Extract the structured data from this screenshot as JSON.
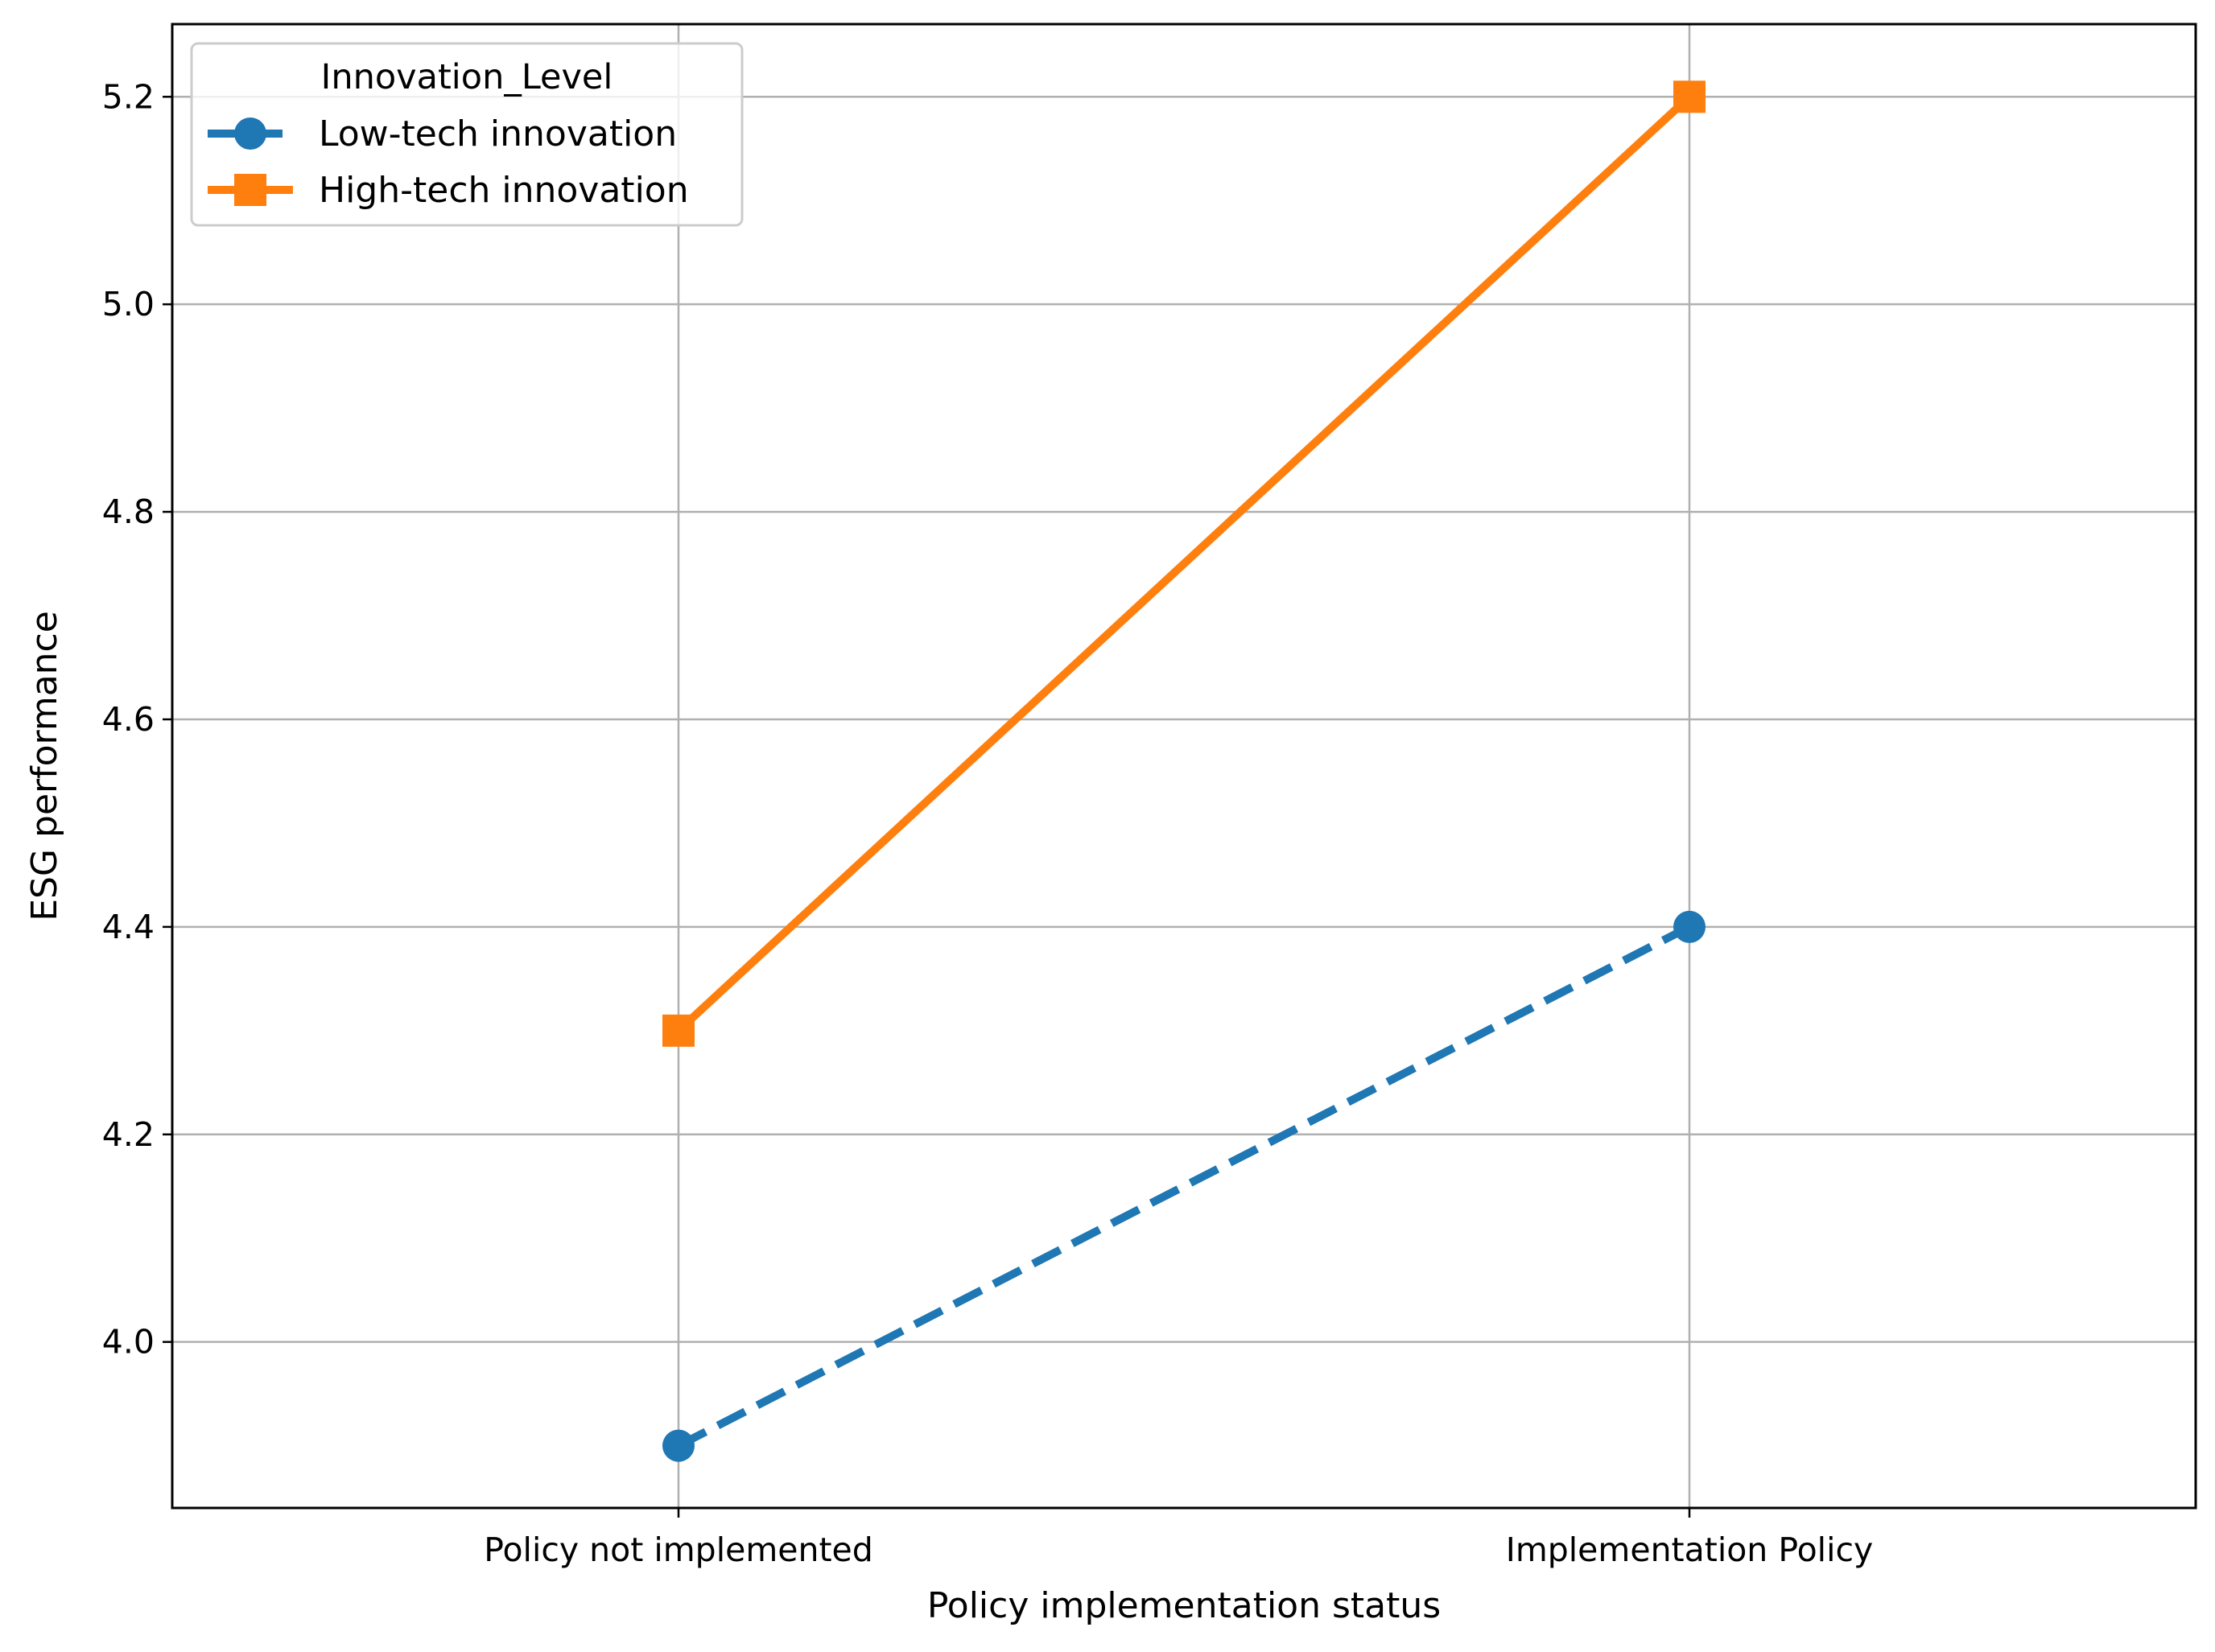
{
  "chart_data": {
    "type": "line",
    "title": "",
    "xlabel": "Policy implementation status",
    "ylabel": "ESG performance",
    "categories": [
      "Policy not implemented",
      "Implementation Policy"
    ],
    "y_ticks": [
      "4.0",
      "4.2",
      "4.4",
      "4.6",
      "4.8",
      "5.0",
      "5.2"
    ],
    "ylim": [
      3.84,
      5.27
    ],
    "grid": true,
    "legend": {
      "title": "Innovation_Level",
      "placement": "top-left"
    },
    "series": [
      {
        "name": "Low-tech innovation",
        "values": [
          3.9,
          4.4
        ],
        "color": "#1f77b4",
        "line_style": "dashed",
        "marker": "circle"
      },
      {
        "name": "High-tech innovation",
        "values": [
          4.3,
          5.2
        ],
        "color": "#ff7f0e",
        "line_style": "solid",
        "marker": "square"
      }
    ]
  }
}
